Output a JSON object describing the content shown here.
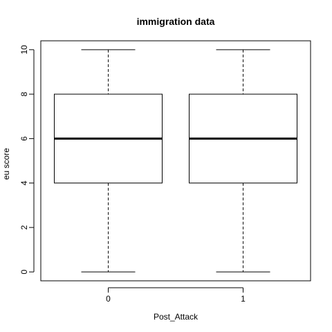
{
  "chart_data": {
    "type": "box",
    "title": "immigration data",
    "xlabel": "Post_Attack",
    "ylabel": "eu score",
    "categories": [
      "0",
      "1"
    ],
    "ylim": [
      -0.4,
      10.4
    ],
    "yticks": [
      "0",
      "2",
      "4",
      "6",
      "8",
      "10"
    ],
    "boxes": [
      {
        "category": "0",
        "min": 0,
        "q1": 4,
        "median": 6,
        "q3": 8,
        "max": 10
      },
      {
        "category": "1",
        "min": 0,
        "q1": 4,
        "median": 6,
        "q3": 8,
        "max": 10
      }
    ],
    "grid": false
  }
}
